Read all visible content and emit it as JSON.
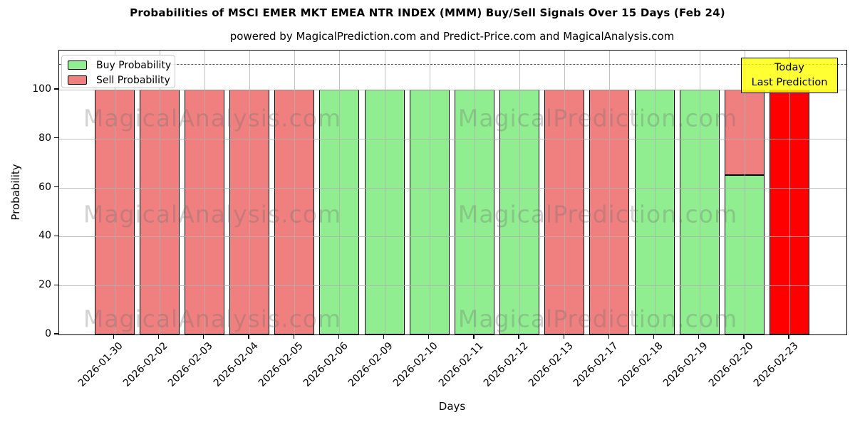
{
  "title": "Probabilities of MSCI EMER MKT EMEA NTR INDEX (MMM) Buy/Sell Signals Over 15 Days (Feb 24)",
  "subtitle": "powered by MagicalPrediction.com and Predict-Price.com and MagicalAnalysis.com",
  "axes": {
    "xlabel": "Days",
    "ylabel": "Probability",
    "yticks": [
      0,
      20,
      40,
      60,
      80,
      100
    ]
  },
  "legend": {
    "items": [
      {
        "label": "Buy Probability",
        "color": "#90ee90"
      },
      {
        "label": "Sell Probability",
        "color": "#f08080"
      }
    ]
  },
  "annotation": {
    "line1": "Today",
    "line2": "Last Prediction",
    "bg_color": "#ffff00"
  },
  "watermarks": {
    "left": "MagicalAnalysis.com",
    "right": "MagicalPrediction.com"
  },
  "colors": {
    "buy": "#90ee90",
    "sell": "#f08080",
    "today": "#ff0000",
    "grid": "#b0b0b0",
    "annotation_bg": "#ffff00"
  },
  "chart_data": {
    "type": "bar",
    "stacked": true,
    "title": "Probabilities of MSCI EMER MKT EMEA NTR INDEX (MMM) Buy/Sell Signals Over 15 Days (Feb 24)",
    "xlabel": "Days",
    "ylabel": "Probability",
    "categories": [
      "2026-01-30",
      "2026-02-02",
      "2026-02-03",
      "2026-02-04",
      "2026-02-05",
      "2026-02-06",
      "2026-02-09",
      "2026-02-10",
      "2026-02-11",
      "2026-02-12",
      "2026-02-13",
      "2026-02-17",
      "2026-02-18",
      "2026-02-19",
      "2026-02-20",
      "2026-02-23"
    ],
    "series": [
      {
        "name": "Buy Probability",
        "color": "#90ee90",
        "values": [
          0,
          0,
          0,
          0,
          0,
          100,
          100,
          100,
          100,
          100,
          0,
          0,
          100,
          100,
          65,
          0
        ]
      },
      {
        "name": "Sell Probability",
        "color": "#f08080",
        "values": [
          100,
          100,
          100,
          100,
          100,
          0,
          0,
          0,
          0,
          0,
          100,
          100,
          0,
          0,
          35,
          100
        ]
      }
    ],
    "today_index": 15,
    "today_color": "#ff0000",
    "today_label": "Today Last Prediction",
    "ylim": [
      0,
      116
    ],
    "dashed_line_y": 110.5,
    "grid": true,
    "legend_position": "upper left"
  }
}
